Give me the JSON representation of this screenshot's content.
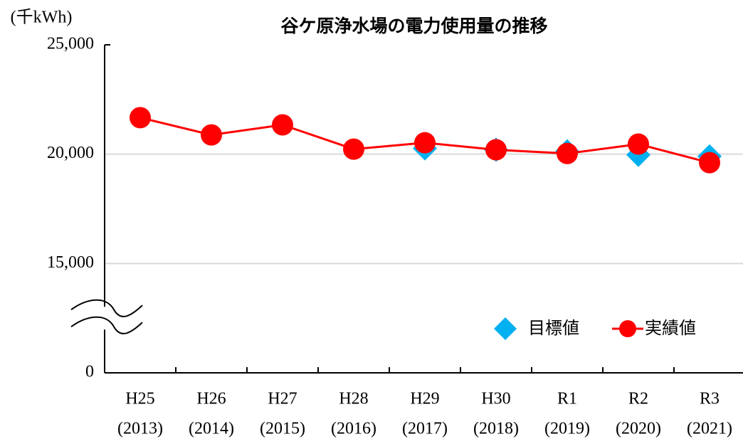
{
  "chart_data": {
    "type": "line",
    "title": "谷ケ原浄水場の電力使用量の推移",
    "y_label": "(千kWh)",
    "categories": [
      [
        "H25",
        "(2013)"
      ],
      [
        "H26",
        "(2014)"
      ],
      [
        "H27",
        "(2015)"
      ],
      [
        "H28",
        "(2016)"
      ],
      [
        "H29",
        "(2017)"
      ],
      [
        "H30",
        "(2018)"
      ],
      [
        "R1",
        "(2019)"
      ],
      [
        "R2",
        "(2020)"
      ],
      [
        "R3",
        "(2021)"
      ]
    ],
    "series": [
      {
        "name": "目標値",
        "color": "#00b0f0",
        "marker": "diamond",
        "line": false,
        "values": [
          null,
          null,
          null,
          null,
          20260,
          20200,
          20130,
          19970,
          19900
        ]
      },
      {
        "name": "実績値",
        "color": "#ff0000",
        "marker": "circle",
        "line": true,
        "values": [
          21670,
          20880,
          21340,
          20230,
          20520,
          20200,
          20030,
          20460,
          19610
        ]
      }
    ],
    "ylim": [
      0,
      25000
    ],
    "yticks": [
      {
        "value": 0,
        "label": "0"
      },
      {
        "value": 15000,
        "label": "15,000"
      },
      {
        "value": 20000,
        "label": "20,000"
      },
      {
        "value": 25000,
        "label": "25,000"
      }
    ],
    "axis_break": true,
    "grid": true,
    "legend": "lower right"
  }
}
